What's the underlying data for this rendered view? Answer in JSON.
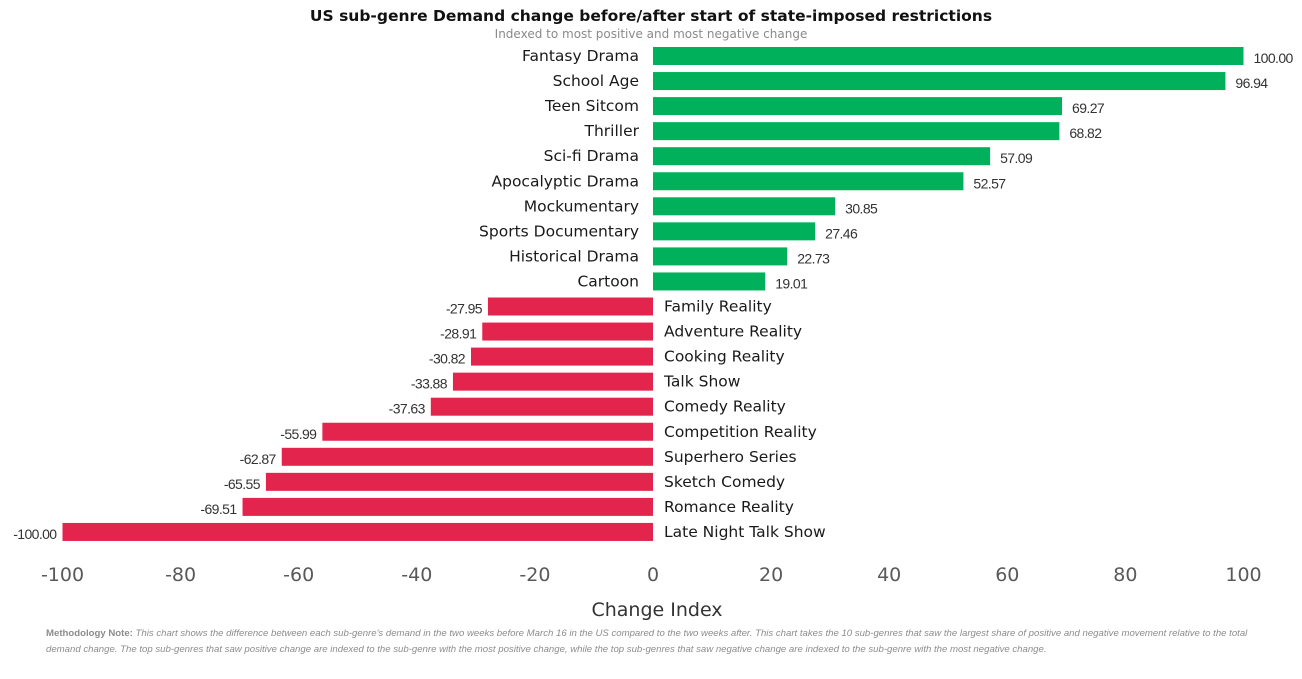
{
  "chart_data": {
    "type": "bar",
    "orientation": "horizontal",
    "title": "US sub-genre Demand change before/after start of state-imposed restrictions",
    "subtitle": "Indexed to most positive and most negative change",
    "xlabel": "Change Index",
    "ylabel": "",
    "xlim": [
      -100,
      100
    ],
    "xticks": [
      -100,
      -80,
      -60,
      -40,
      -20,
      0,
      20,
      40,
      60,
      80,
      100
    ],
    "categories": [
      "Fantasy Drama",
      "School Age",
      "Teen Sitcom",
      "Thriller",
      "Sci-fi Drama",
      "Apocalyptic Drama",
      "Mockumentary",
      "Sports Documentary",
      "Historical Drama",
      "Cartoon",
      "Family Reality",
      "Adventure Reality",
      "Cooking Reality",
      "Talk Show",
      "Comedy Reality",
      "Competition Reality",
      "Superhero Series",
      "Sketch Comedy",
      "Romance Reality",
      "Late Night Talk Show"
    ],
    "values": [
      100.0,
      96.94,
      69.27,
      68.82,
      57.09,
      52.57,
      30.85,
      27.46,
      22.73,
      19.01,
      -27.95,
      -28.91,
      -30.82,
      -33.88,
      -37.63,
      -55.99,
      -62.87,
      -65.55,
      -69.51,
      -100.0
    ],
    "value_labels": [
      "100.00",
      "96.94",
      "69.27",
      "68.82",
      "57.09",
      "52.57",
      "30.85",
      "27.46",
      "22.73",
      "19.01",
      "-27.95",
      "-28.91",
      "-30.82",
      "-33.88",
      "-37.63",
      "-55.99",
      "-62.87",
      "-65.55",
      "-69.51",
      "-100.00"
    ],
    "colors": {
      "positive": "#00b05a",
      "negative": "#e3244c"
    },
    "grid": false,
    "legend": "none"
  },
  "methodology": {
    "label": "Methodology Note:",
    "text": " This chart shows the difference between each sub-genre's demand in the two weeks before March 16 in the US compared to the two weeks after. This chart takes the 10 sub-genres that saw the largest share of positive and negative movement relative to the total demand change. The top sub-genres that saw positive change are indexed to the sub-genre with the most positive change, while the top sub-genres that saw negative change are indexed to the sub-genre with the most negative change."
  }
}
